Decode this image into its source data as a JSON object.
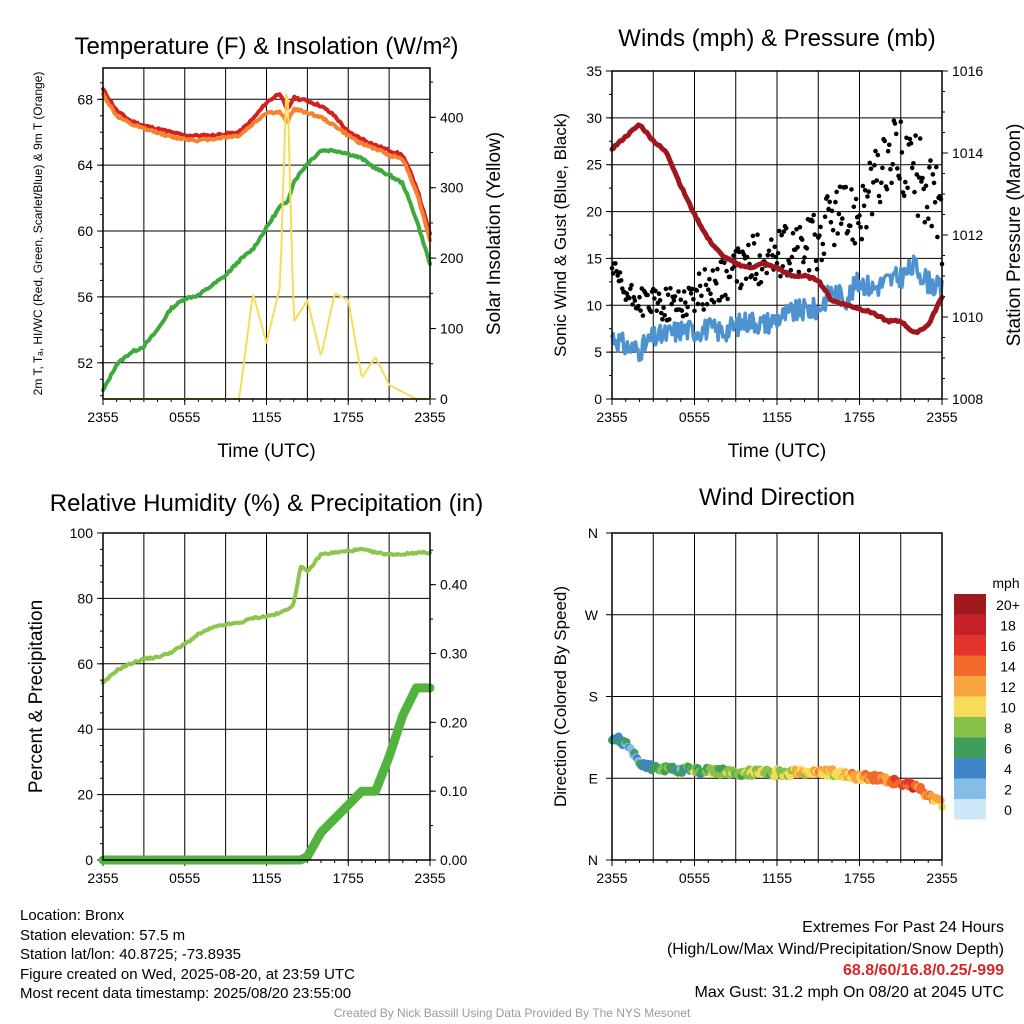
{
  "chart_data": [
    {
      "type": "line",
      "title": "Temperature (F) & Insolation (W/m²)",
      "xlabel": "Time (UTC)",
      "ylabel_left": "2m T, Tₐ, HI/WC (Red, Green, Scarlet/Blue) & 9m T (Orange)",
      "ylabel_right": "Solar Insolation (Yellow)",
      "x_ticks": [
        "2355",
        "0555",
        "1155",
        "1755",
        "2355"
      ],
      "y_left_ticks": [
        52,
        56,
        60,
        64,
        68
      ],
      "ylim_left": [
        49.8,
        69.9
      ],
      "y_right_ticks": [
        0,
        100,
        200,
        300,
        400
      ],
      "ylim_right": [
        0,
        470
      ],
      "x": [
        0,
        1,
        2,
        3,
        4,
        5,
        6,
        7,
        8,
        9,
        10,
        11,
        12,
        13,
        13.5,
        14,
        15,
        16,
        17,
        18,
        19,
        20,
        21,
        22,
        23,
        24
      ],
      "series": [
        {
          "name": "2m T",
          "color": "#d42020",
          "axis": "left",
          "values": [
            68.6,
            67.3,
            66.7,
            66.4,
            66.2,
            66.0,
            65.8,
            65.8,
            65.8,
            65.9,
            66.0,
            66.8,
            67.8,
            68.4,
            67.3,
            68.1,
            67.9,
            67.6,
            67.0,
            66.0,
            65.6,
            65.2,
            64.9,
            64.6,
            62.7,
            59.8
          ]
        },
        {
          "name": "9m T",
          "color": "#f58231",
          "axis": "left",
          "values": [
            68.3,
            67.0,
            66.5,
            66.2,
            66.0,
            65.7,
            65.6,
            65.5,
            65.6,
            65.7,
            65.8,
            66.5,
            67.2,
            67.2,
            66.6,
            67.4,
            67.2,
            66.9,
            66.4,
            65.8,
            65.3,
            65.0,
            64.6,
            64.4,
            62.4,
            59.5
          ]
        },
        {
          "name": "Td",
          "color": "#3eaa3e",
          "axis": "left",
          "values": [
            50.3,
            51.9,
            52.6,
            53.0,
            54.0,
            55.3,
            55.9,
            56.1,
            56.7,
            57.3,
            58.2,
            58.9,
            60.2,
            61.5,
            61.7,
            63.0,
            64.1,
            64.9,
            64.9,
            64.7,
            64.4,
            63.8,
            63.4,
            62.9,
            60.7,
            58.0
          ]
        },
        {
          "name": "Solar Insolation",
          "color": "#f7dc5a",
          "axis": "right",
          "values": [
            0,
            0,
            0,
            0,
            0,
            0,
            0,
            0,
            0,
            0,
            0,
            150,
            80,
            160,
            470,
            110,
            140,
            60,
            150,
            140,
            30,
            60,
            20,
            10,
            0,
            0
          ]
        }
      ]
    },
    {
      "type": "line",
      "title": "Winds (mph) & Pressure (mb)",
      "xlabel": "Time (UTC)",
      "ylabel_left": "Sonic Wind & Gust (Blue, Black)",
      "ylabel_right": "Station Pressure (Maroon)",
      "x_ticks": [
        "2355",
        "0555",
        "1155",
        "1755",
        "2355"
      ],
      "y_left_ticks": [
        0,
        5,
        10,
        15,
        20,
        25,
        30,
        35
      ],
      "ylim_left": [
        0,
        35
      ],
      "y_right_ticks": [
        1008,
        1010,
        1012,
        1014,
        1016
      ],
      "ylim_right": [
        1008,
        1016
      ],
      "x": [
        0,
        1,
        2,
        3,
        4,
        5,
        6,
        7,
        8,
        9,
        10,
        11,
        12,
        13,
        14,
        15,
        16,
        17,
        18,
        19,
        20,
        21,
        22,
        23,
        24
      ],
      "series": [
        {
          "name": "Sonic Wind",
          "color": "#4e93d0",
          "axis": "left",
          "values": [
            6.8,
            5.6,
            5.2,
            6.5,
            6.9,
            7.4,
            7.3,
            7.5,
            7.2,
            7.8,
            8.4,
            8.0,
            8.6,
            9.2,
            9.5,
            9.6,
            11.6,
            10.7,
            12.6,
            11.8,
            12.6,
            13.0,
            14.2,
            12.5,
            11.6
          ]
        },
        {
          "name": "Gust",
          "color": "#000000",
          "axis": "left",
          "values": [
            14.0,
            11.0,
            10.5,
            10.2,
            10.0,
            10.4,
            11.0,
            12.0,
            12.6,
            13.6,
            14.6,
            15.2,
            15.0,
            15.8,
            16.2,
            16.8,
            19.8,
            19.5,
            20.5,
            22.5,
            25.0,
            26.5,
            24.0,
            22.8,
            19.0
          ]
        },
        {
          "name": "Station Pressure",
          "color": "#a0161e",
          "axis": "right",
          "values": [
            1014.1,
            1014.4,
            1014.7,
            1014.3,
            1014.0,
            1013.2,
            1012.5,
            1011.9,
            1011.5,
            1011.3,
            1011.2,
            1011.3,
            1011.2,
            1011.0,
            1011.0,
            1010.9,
            1010.4,
            1010.3,
            1010.2,
            1010.1,
            1009.9,
            1009.9,
            1009.6,
            1009.8,
            1010.5
          ]
        }
      ]
    },
    {
      "type": "line",
      "title": "Relative Humidity (%) & Precipitation (in)",
      "xlabel": "",
      "ylabel_left": "Percent & Precipitation",
      "ylabel_right": "",
      "x_ticks": [
        "2355",
        "0555",
        "1155",
        "1755",
        "2355"
      ],
      "y_left_ticks": [
        0,
        20,
        40,
        60,
        80,
        100
      ],
      "ylim_left": [
        0,
        100
      ],
      "y_right_ticks": [
        "0.00",
        "0.10",
        "0.20",
        "0.30",
        "0.40"
      ],
      "ylim_right": [
        0,
        0.475
      ],
      "x": [
        0,
        1,
        2,
        3,
        4,
        5,
        6,
        7,
        8,
        9,
        10,
        11,
        12,
        13,
        14,
        14.5,
        15,
        16,
        17,
        18,
        19,
        20,
        21,
        22,
        23,
        24
      ],
      "series": [
        {
          "name": "Relative Humidity",
          "color": "#8fc44f",
          "axis": "left",
          "values": [
            54,
            58,
            60,
            61.5,
            62,
            63.5,
            66,
            69,
            71,
            72,
            72.5,
            74,
            74.5,
            75.5,
            78,
            90,
            88,
            93.5,
            94,
            94.5,
            95,
            94,
            93.5,
            93.5,
            94,
            94
          ]
        },
        {
          "name": "Precipitation",
          "color": "#52b43e",
          "axis": "right",
          "values": [
            0,
            0,
            0,
            0,
            0,
            0,
            0,
            0,
            0,
            0,
            0,
            0,
            0,
            0,
            0,
            0,
            0.005,
            0.04,
            0.06,
            0.08,
            0.1,
            0.1,
            0.15,
            0.21,
            0.25,
            0.25
          ]
        }
      ]
    },
    {
      "type": "scatter",
      "title": "Wind Direction",
      "xlabel": "",
      "ylabel": "Direction (Colored By Speed)",
      "x_ticks": [
        "2355",
        "0555",
        "1155",
        "1755",
        "2355"
      ],
      "y_ticks": [
        "N",
        "E",
        "S",
        "W",
        "N"
      ],
      "ylim": [
        0,
        360
      ],
      "x": [
        0,
        0.5,
        1,
        1.5,
        2,
        2.5,
        3,
        3.5,
        4,
        4.5,
        5,
        5.5,
        6,
        6.5,
        7,
        7.5,
        8,
        8.5,
        9,
        9.5,
        10,
        10.5,
        11,
        11.5,
        12,
        12.5,
        13,
        13.5,
        14,
        14.5,
        15,
        15.5,
        16,
        16.5,
        17,
        17.5,
        18,
        18.5,
        19,
        19.5,
        20,
        20.5,
        21,
        21.5,
        22,
        22.5,
        23,
        23.5,
        24
      ],
      "values": [
        135,
        132,
        128,
        120,
        108,
        104,
        102,
        101,
        100,
        99,
        99,
        100,
        99,
        98,
        98,
        97,
        97,
        96,
        97,
        96,
        96,
        97,
        96,
        95,
        96,
        95,
        96,
        97,
        96,
        97,
        97,
        96,
        96,
        95,
        94,
        93,
        90,
        92,
        91,
        90,
        88,
        87,
        86,
        84,
        80,
        78,
        70,
        66,
        62
      ],
      "speeds": [
        6,
        5,
        5,
        4,
        6,
        6,
        7,
        7,
        8,
        6,
        5,
        7,
        9,
        7,
        8,
        10,
        8,
        9,
        8,
        10,
        9,
        10,
        11,
        9,
        11,
        10,
        10,
        12,
        11,
        12,
        13,
        12,
        11,
        10,
        12,
        13,
        12,
        14,
        13,
        15,
        14,
        16,
        15,
        16,
        17,
        15,
        14,
        13,
        12
      ],
      "legend_title": "mph",
      "legend_labels": [
        "20+",
        "18",
        "16",
        "14",
        "12",
        "10",
        "8",
        "6",
        "4",
        "2",
        "0"
      ],
      "legend_colors": [
        "#9e1a1e",
        "#c62128",
        "#e2332c",
        "#f26a2b",
        "#f9a53f",
        "#f7dc5a",
        "#86c14a",
        "#3f9e5a",
        "#3f84c4",
        "#86bde6",
        "#cce7f8"
      ]
    }
  ],
  "info": {
    "location": "Location: Bronx",
    "elevation": "Station elevation: 57.5 m",
    "latlon": "Station lat/lon: 40.8725; -73.8935",
    "created": "Figure created on Wed, 2025-08-20, at 23:59 UTC",
    "recent": "Most recent data timestamp: 2025/08/20 23:55:00"
  },
  "extremes": {
    "title": "Extremes For Past 24 Hours",
    "subtitle": "(High/Low/Max Wind/Precipitation/Snow Depth)",
    "values": "68.8/60/16.8/0.25/-999",
    "gust": "Max Gust: 31.2 mph On 08/20 at 2045 UTC"
  },
  "credit": "Created By Nick Bassill Using Data Provided By The NYS Mesonet"
}
